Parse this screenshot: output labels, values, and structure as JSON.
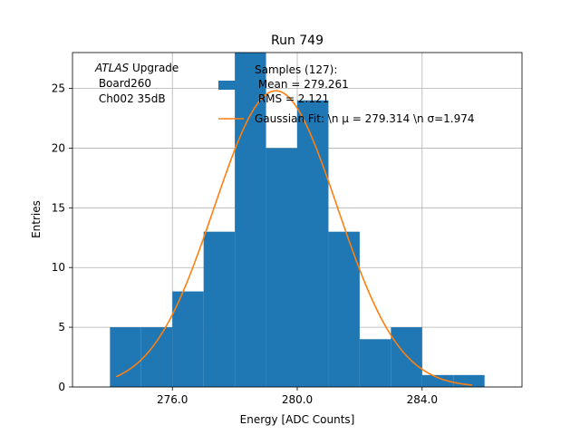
{
  "chart_data": {
    "type": "bar",
    "title": "Run 749",
    "xlabel": "Energy [ADC Counts]",
    "ylabel": "Entries",
    "xlim": [
      272.8,
      287.2
    ],
    "ylim": [
      0,
      28
    ],
    "grid": true,
    "x_ticks": [
      276,
      280,
      284
    ],
    "x_tick_labels": [
      "276.0",
      "280.0",
      "284.0"
    ],
    "y_ticks": [
      0,
      5,
      10,
      15,
      20,
      25
    ],
    "y_tick_labels": [
      "0",
      "5",
      "10",
      "15",
      "20",
      "25"
    ],
    "bin_edges": [
      274,
      275,
      276,
      277,
      278,
      279,
      280,
      281,
      282,
      283,
      284,
      285,
      286
    ],
    "bin_counts": [
      5,
      5,
      8,
      13,
      28,
      20,
      24,
      13,
      4,
      5,
      1,
      1
    ],
    "hist_color": "#1f77b4",
    "fit_color": "#ff7f0e",
    "fit": {
      "mu": 279.314,
      "sigma": 1.974,
      "amplitude": 24.8,
      "x_range": [
        274.2,
        285.6
      ]
    },
    "annotation": {
      "line1_italic": "ATLAS",
      "line1_rest": " Upgrade",
      "line2": " Board260",
      "line3": " Ch002 35dB"
    },
    "legend": {
      "placement": "top-right",
      "hist_label_lines": [
        "Samples (127):",
        " Mean = 279.261",
        " RMS = 2.121"
      ],
      "fit_label": "Gaussian Fit: \\n μ = 279.314 \\n σ=1.974"
    }
  }
}
